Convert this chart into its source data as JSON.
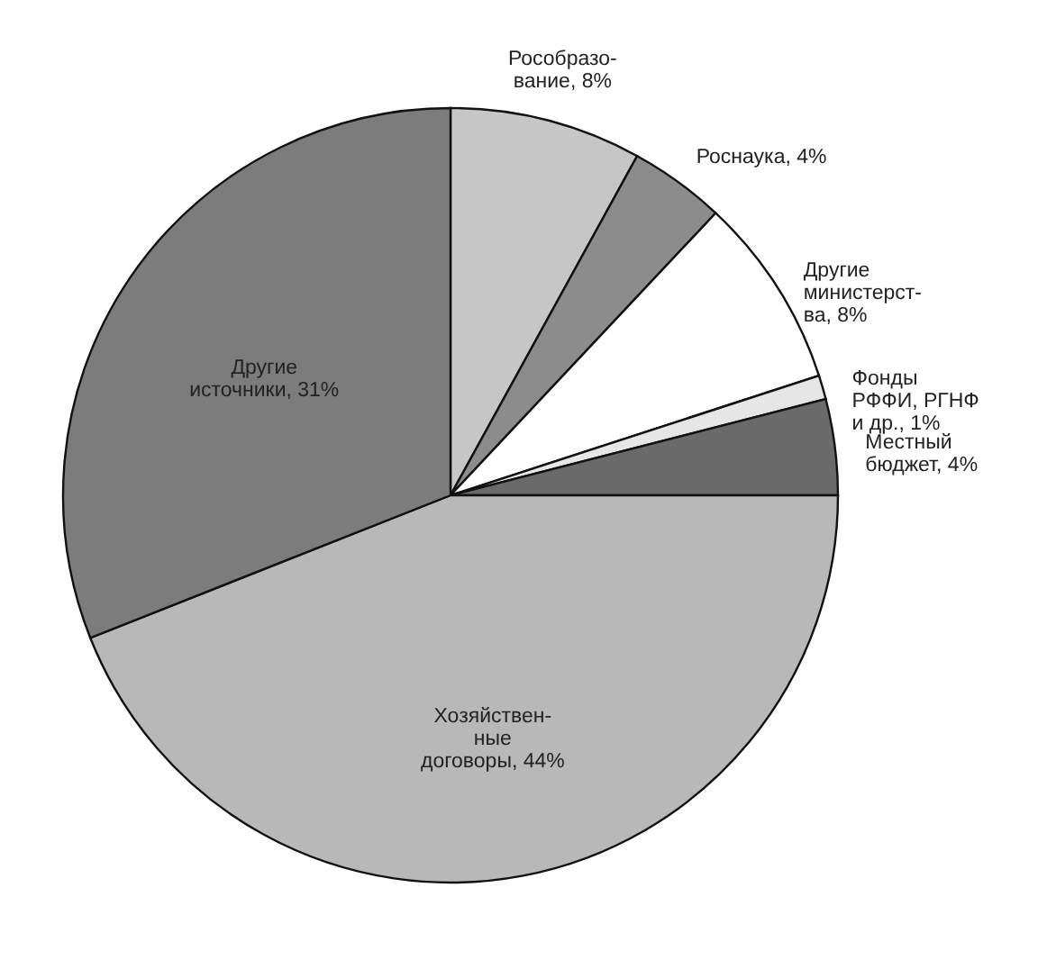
{
  "chart_data": {
    "type": "pie",
    "categories": [
      "Рособразо-вание",
      "Роснаука",
      "Другие министерст-ва",
      "Фонды РФФИ, РГНФ и др.",
      "Местный бюджет",
      "Хозяйствен-ные договоры",
      "Другие источники"
    ],
    "values": [
      8,
      4,
      8,
      1,
      4,
      44,
      31
    ],
    "value_labels": [
      "8%",
      "4%",
      "8%",
      "1%",
      "4%",
      "44%",
      "31%"
    ],
    "colors": [
      "#c6c6c6",
      "#8c8c8c",
      "#ffffff",
      "#e6e6e6",
      "#6a6a6a",
      "#b8b8b8",
      "#7c7c7c"
    ]
  }
}
